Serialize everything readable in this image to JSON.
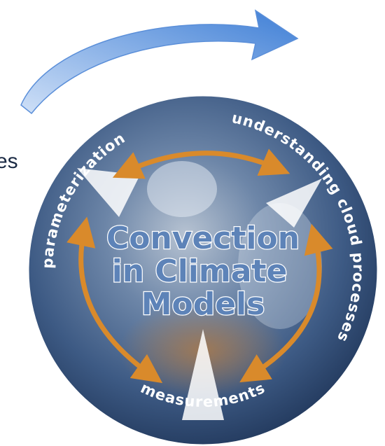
{
  "side_text": "es",
  "ring": {
    "left": "parameterization",
    "right": "understanding cloud processes",
    "bottom": "measurements"
  },
  "center": {
    "lines": [
      "Convection",
      "in Climate",
      "Models"
    ]
  }
}
